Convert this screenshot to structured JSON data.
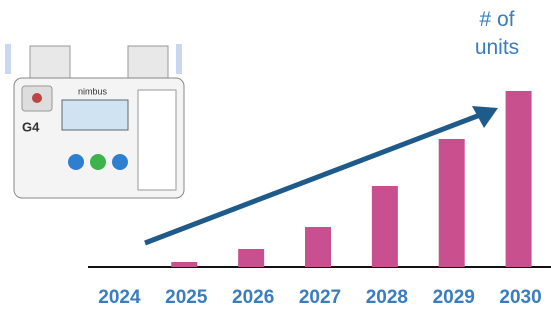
{
  "chart_data": {
    "type": "bar",
    "y_label": "# of units",
    "categories": [
      "2024",
      "2025",
      "2026",
      "2027",
      "2028",
      "2029",
      "2030"
    ],
    "values": [
      0,
      5,
      18,
      40,
      81,
      128,
      176
    ],
    "color": "#c9508f",
    "ylim": [
      0,
      180
    ],
    "annotations": [
      "nimbus",
      "G4"
    ]
  }
}
